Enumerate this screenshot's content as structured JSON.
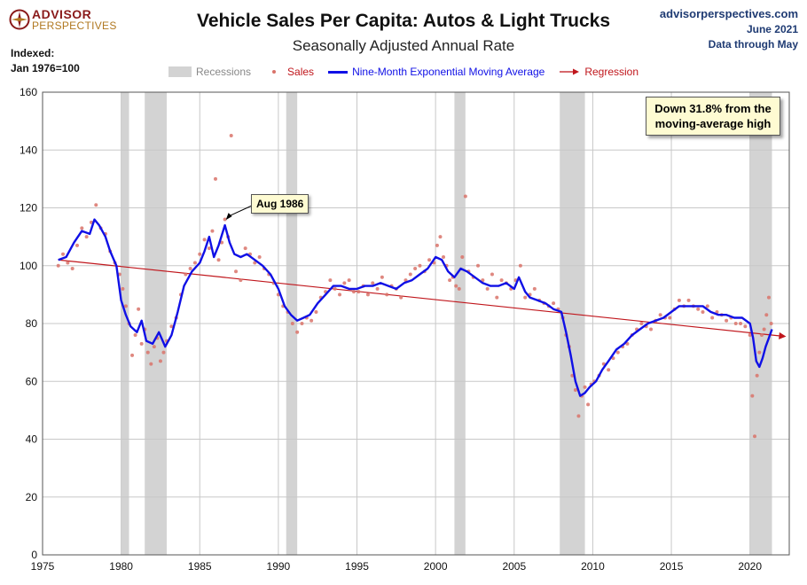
{
  "header": {
    "logo_line1": "ADVISOR",
    "logo_line2": "PERSPECTIVES",
    "title": "Vehicle Sales Per Capita: Autos & Light Trucks",
    "subtitle": "Seasonally Adjusted Annual Rate",
    "site": "advisorperspectives.com",
    "date": "June 2021",
    "data_through": "Data through May"
  },
  "y_axis_note": {
    "line1": "Indexed:",
    "line2": "Jan 1976=100"
  },
  "legend": {
    "recessions": "Recessions",
    "sales": "Sales",
    "ema": "Nine-Month Exponential Moving Average",
    "regression": "Regression"
  },
  "annotations": {
    "note": "Down 31.8% from the moving-average high",
    "aug_label": "Aug 1986"
  },
  "colors": {
    "recession": "#d3d3d3",
    "sales": "#d9736a",
    "ema": "#1010e6",
    "regression": "#c0161c",
    "grid": "#c8c8c8"
  },
  "chart_data": {
    "type": "line",
    "title": "Vehicle Sales Per Capita: Autos & Light Trucks",
    "subtitle": "Seasonally Adjusted Annual Rate",
    "ylabel": "Indexed: Jan 1976=100",
    "xlim": [
      1975,
      2022.5
    ],
    "ylim": [
      0,
      160
    ],
    "x_ticks": [
      1975,
      1980,
      1985,
      1990,
      1995,
      2000,
      2005,
      2010,
      2015,
      2020
    ],
    "y_ticks": [
      0,
      20,
      40,
      60,
      80,
      100,
      120,
      140,
      160
    ],
    "grid": true,
    "legend_position": "top",
    "recessions": [
      [
        1980.0,
        1980.5
      ],
      [
        1981.5,
        1982.9
      ],
      [
        1990.5,
        1991.2
      ],
      [
        2001.2,
        2001.9
      ],
      [
        2007.9,
        2009.5
      ],
      [
        2020.0,
        2021.4
      ]
    ],
    "regression": {
      "x": [
        1976.0,
        2022.3
      ],
      "y": [
        102.0,
        75.5
      ]
    },
    "series": [
      {
        "name": "Nine-Month Exponential Moving Average",
        "x": [
          1976.0,
          1976.5,
          1977.0,
          1977.5,
          1978.0,
          1978.3,
          1978.6,
          1979.0,
          1979.3,
          1979.7,
          1980.0,
          1980.3,
          1980.6,
          1981.0,
          1981.3,
          1981.6,
          1982.0,
          1982.4,
          1982.8,
          1983.2,
          1983.6,
          1984.0,
          1984.5,
          1985.0,
          1985.3,
          1985.6,
          1985.9,
          1986.2,
          1986.6,
          1986.9,
          1987.2,
          1987.6,
          1988.0,
          1988.5,
          1989.0,
          1989.5,
          1990.0,
          1990.4,
          1990.8,
          1991.2,
          1991.6,
          1992.0,
          1992.5,
          1993.0,
          1993.5,
          1994.0,
          1994.5,
          1995.0,
          1995.5,
          1996.0,
          1996.5,
          1997.0,
          1997.5,
          1998.0,
          1998.5,
          1999.0,
          1999.5,
          2000.0,
          2000.4,
          2000.8,
          2001.2,
          2001.6,
          2002.0,
          2002.5,
          2003.0,
          2003.5,
          2004.0,
          2004.5,
          2005.0,
          2005.3,
          2005.7,
          2006.0,
          2006.5,
          2007.0,
          2007.5,
          2008.0,
          2008.3,
          2008.6,
          2008.9,
          2009.2,
          2009.5,
          2009.8,
          2010.2,
          2010.6,
          2011.0,
          2011.5,
          2012.0,
          2012.5,
          2013.0,
          2013.5,
          2014.0,
          2014.5,
          2015.0,
          2015.5,
          2016.0,
          2016.5,
          2017.0,
          2017.5,
          2018.0,
          2018.5,
          2019.0,
          2019.5,
          2020.0,
          2020.2,
          2020.4,
          2020.6,
          2020.8,
          2021.0,
          2021.2,
          2021.4
        ],
        "y": [
          102,
          103,
          108,
          112,
          111,
          116,
          114,
          110,
          105,
          100,
          88,
          83,
          79,
          77,
          81,
          74,
          73,
          77,
          72,
          76,
          84,
          93,
          98,
          101,
          105,
          110,
          103,
          107,
          114,
          108,
          104,
          103,
          104,
          102,
          100,
          97,
          92,
          86,
          83,
          81,
          82,
          83,
          87,
          90,
          93,
          93,
          92,
          92,
          93,
          93,
          94,
          93,
          92,
          94,
          95,
          97,
          99,
          103,
          102,
          98,
          96,
          99,
          98,
          96,
          94,
          93,
          93,
          94,
          92,
          96,
          91,
          89,
          88,
          87,
          85,
          84,
          77,
          69,
          60,
          55,
          56,
          58,
          60,
          64,
          67,
          71,
          73,
          76,
          78,
          80,
          81,
          82,
          84,
          86,
          86,
          86,
          86,
          84,
          83,
          83,
          82,
          82,
          80,
          75,
          67,
          65,
          68,
          72,
          75,
          78
        ]
      },
      {
        "name": "Sales",
        "x": [
          1976.0,
          1976.3,
          1976.6,
          1976.9,
          1977.2,
          1977.5,
          1977.8,
          1978.1,
          1978.4,
          1978.7,
          1979.0,
          1979.3,
          1979.6,
          1979.9,
          1980.1,
          1980.3,
          1980.5,
          1980.7,
          1980.9,
          1981.1,
          1981.3,
          1981.5,
          1981.7,
          1981.9,
          1982.1,
          1982.3,
          1982.5,
          1982.7,
          1982.9,
          1983.2,
          1983.5,
          1983.8,
          1984.1,
          1984.4,
          1984.7,
          1985.0,
          1985.3,
          1985.6,
          1985.8,
          1986.0,
          1986.2,
          1986.4,
          1986.6,
          1986.8,
          1987.0,
          1987.3,
          1987.6,
          1987.9,
          1988.2,
          1988.5,
          1988.8,
          1989.1,
          1989.4,
          1989.7,
          1990.0,
          1990.3,
          1990.6,
          1990.9,
          1991.2,
          1991.5,
          1991.8,
          1992.1,
          1992.4,
          1992.7,
          1993.0,
          1993.3,
          1993.6,
          1993.9,
          1994.2,
          1994.5,
          1994.8,
          1995.1,
          1995.4,
          1995.7,
          1996.0,
          1996.3,
          1996.6,
          1996.9,
          1997.2,
          1997.5,
          1997.8,
          1998.1,
          1998.4,
          1998.7,
          1999.0,
          1999.3,
          1999.6,
          1999.9,
          2000.1,
          2000.3,
          2000.5,
          2000.7,
          2000.9,
          2001.1,
          2001.3,
          2001.5,
          2001.7,
          2001.9,
          2002.1,
          2002.4,
          2002.7,
          2003.0,
          2003.3,
          2003.6,
          2003.9,
          2004.2,
          2004.5,
          2004.8,
          2005.1,
          2005.4,
          2005.7,
          2006.0,
          2006.3,
          2006.6,
          2006.9,
          2007.2,
          2007.5,
          2007.8,
          2008.1,
          2008.3,
          2008.5,
          2008.7,
          2008.9,
          2009.1,
          2009.3,
          2009.5,
          2009.7,
          2009.9,
          2010.1,
          2010.4,
          2010.7,
          2011.0,
          2011.3,
          2011.6,
          2011.9,
          2012.2,
          2012.5,
          2012.8,
          2013.1,
          2013.4,
          2013.7,
          2014.0,
          2014.3,
          2014.6,
          2014.9,
          2015.2,
          2015.5,
          2015.8,
          2016.1,
          2016.4,
          2016.7,
          2017.0,
          2017.3,
          2017.6,
          2017.9,
          2018.2,
          2018.5,
          2018.8,
          2019.1,
          2019.4,
          2019.7,
          2020.0,
          2020.15,
          2020.3,
          2020.45,
          2020.6,
          2020.75,
          2020.9,
          2021.05,
          2021.2,
          2021.35
        ],
        "y": [
          100,
          104,
          101,
          99,
          107,
          113,
          110,
          115,
          121,
          113,
          111,
          105,
          101,
          97,
          92,
          86,
          80,
          69,
          76,
          85,
          73,
          78,
          70,
          66,
          72,
          75,
          67,
          70,
          74,
          79,
          82,
          90,
          97,
          99,
          101,
          104,
          109,
          106,
          112,
          130,
          102,
          108,
          116,
          110,
          145,
          98,
          95,
          106,
          104,
          101,
          103,
          99,
          97,
          94,
          90,
          86,
          84,
          80,
          77,
          80,
          82,
          81,
          84,
          89,
          91,
          95,
          92,
          90,
          94,
          95,
          91,
          91,
          93,
          90,
          94,
          92,
          96,
          90,
          93,
          92,
          89,
          95,
          97,
          99,
          100,
          98,
          102,
          101,
          107,
          110,
          103,
          100,
          95,
          96,
          93,
          92,
          103,
          124,
          98,
          96,
          100,
          95,
          92,
          97,
          89,
          95,
          94,
          92,
          95,
          100,
          89,
          90,
          92,
          88,
          87,
          86,
          87,
          85,
          82,
          76,
          72,
          62,
          57,
          48,
          55,
          58,
          52,
          59,
          60,
          62,
          66,
          64,
          68,
          70,
          72,
          73,
          76,
          78,
          80,
          79,
          78,
          81,
          83,
          82,
          82,
          85,
          88,
          86,
          88,
          86,
          85,
          84,
          86,
          82,
          84,
          83,
          81,
          82,
          80,
          80,
          79,
          76,
          55,
          41,
          62,
          70,
          76,
          78,
          83,
          89,
          80
        ]
      }
    ]
  }
}
